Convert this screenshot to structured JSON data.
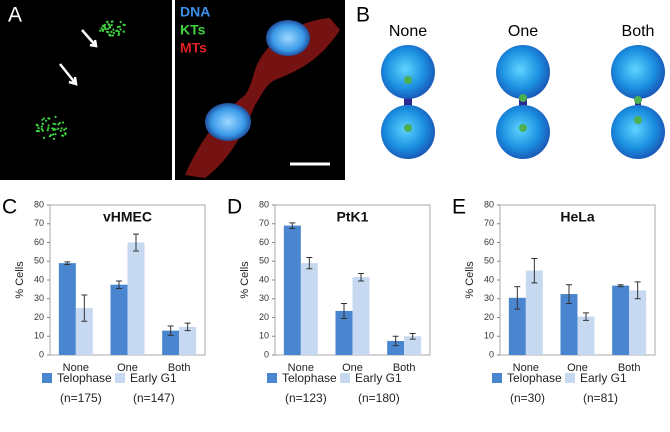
{
  "figure": {
    "panel_a": {
      "label": "A",
      "stains": [
        "DNA",
        "KTs",
        "MTs"
      ]
    },
    "panel_b": {
      "label": "B",
      "conditions": [
        "None",
        "One",
        "Both"
      ]
    }
  },
  "chart_data": [
    {
      "type": "bar",
      "panel_label": "C",
      "title": "vHMEC",
      "y_label": "% Cells",
      "categories": [
        "None",
        "One",
        "Both"
      ],
      "series": [
        {
          "name": "Telophase",
          "note": "(n=175)",
          "color": "#4a86d0",
          "values": [
            49,
            37.5,
            13
          ],
          "errors": [
            0.7,
            2,
            2.5
          ]
        },
        {
          "name": "Early G1",
          "note": "(n=147)",
          "color": "#c6d9f1",
          "values": [
            25,
            60,
            15
          ],
          "errors": [
            7,
            4.5,
            2
          ]
        }
      ],
      "ylim": [
        0,
        80
      ],
      "yticks": [
        0,
        10,
        20,
        30,
        40,
        50,
        60,
        70,
        80
      ]
    },
    {
      "type": "bar",
      "panel_label": "D",
      "title": "PtK1",
      "y_label": "% Cells",
      "categories": [
        "None",
        "One",
        "Both"
      ],
      "series": [
        {
          "name": "Telophase",
          "note": "(n=123)",
          "color": "#4a86d0",
          "values": [
            69,
            23.5,
            7.5
          ],
          "errors": [
            1.5,
            4,
            2.5
          ]
        },
        {
          "name": "Early G1",
          "note": "(n=180)",
          "color": "#c6d9f1",
          "values": [
            49,
            41.5,
            10
          ],
          "errors": [
            3,
            2,
            1.5
          ]
        }
      ],
      "ylim": [
        0,
        80
      ],
      "yticks": [
        0,
        10,
        20,
        30,
        40,
        50,
        60,
        70,
        80
      ]
    },
    {
      "type": "bar",
      "panel_label": "E",
      "title": "HeLa",
      "y_label": "% Cells",
      "categories": [
        "None",
        "One",
        "Both"
      ],
      "series": [
        {
          "name": "Telophase",
          "note": "(n=30)",
          "color": "#4a86d0",
          "values": [
            30.5,
            32.5,
            37
          ],
          "errors": [
            6,
            5,
            0.5
          ]
        },
        {
          "name": "Early G1",
          "note": "(n=81)",
          "color": "#c6d9f1",
          "values": [
            45,
            20.5,
            34.5
          ],
          "errors": [
            6.5,
            2,
            4.5
          ]
        }
      ],
      "ylim": [
        0,
        80
      ],
      "yticks": [
        0,
        10,
        20,
        30,
        40,
        50,
        60,
        70,
        80
      ]
    }
  ]
}
